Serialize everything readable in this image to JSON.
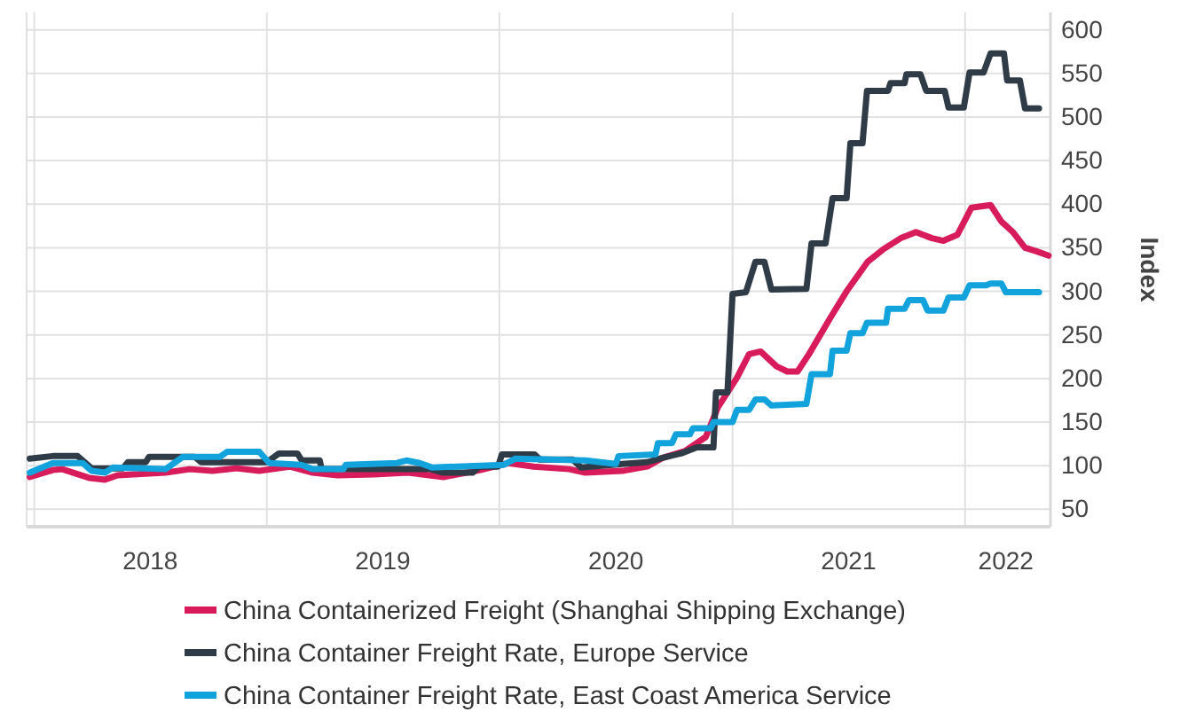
{
  "chart_data": {
    "type": "line",
    "ylabel": "Index",
    "xlim": [
      "2017-12-20",
      "2022-05-15"
    ],
    "ylim": [
      30,
      620
    ],
    "yticks": [
      50,
      100,
      150,
      200,
      250,
      300,
      350,
      400,
      450,
      500,
      550,
      600
    ],
    "xticks": [
      {
        "value": "2018-01-01",
        "label": null
      },
      {
        "value": "2018-07-02",
        "label": "2018"
      },
      {
        "value": "2019-01-01",
        "label": null
      },
      {
        "value": "2019-07-02",
        "label": "2019"
      },
      {
        "value": "2020-01-01",
        "label": null
      },
      {
        "value": "2020-07-02",
        "label": "2020"
      },
      {
        "value": "2021-01-01",
        "label": null
      },
      {
        "value": "2021-07-02",
        "label": "2021"
      },
      {
        "value": "2022-01-01",
        "label": null
      },
      {
        "value": "2022-03-06",
        "label": "2022"
      }
    ],
    "grid": true,
    "legend": "bottom",
    "line_style": "solid",
    "marker": "none",
    "series": [
      {
        "name": "China Containerized Freight (Shanghai Shipping Exchange)",
        "color": "#d81b5b",
        "x": [
          "2017-12-25",
          "2018-01-30",
          "2018-02-14",
          "2018-03-28",
          "2018-04-22",
          "2018-05-12",
          "2018-07-26",
          "2018-09-02",
          "2018-10-08",
          "2018-11-14",
          "2018-12-20",
          "2019-02-06",
          "2019-03-14",
          "2019-04-22",
          "2019-06-18",
          "2019-08-11",
          "2019-10-05",
          "2019-12-02",
          "2020-01-15",
          "2020-02-24",
          "2020-04-20",
          "2020-05-15",
          "2020-07-12",
          "2020-08-20",
          "2020-09-13",
          "2020-10-19",
          "2020-11-20",
          "2020-12-09",
          "2021-01-08",
          "2021-01-27",
          "2021-02-14",
          "2021-03-11",
          "2021-03-28",
          "2021-04-13",
          "2021-05-01",
          "2021-06-03",
          "2021-06-29",
          "2021-08-01",
          "2021-08-25",
          "2021-09-22",
          "2021-10-16",
          "2021-11-10",
          "2021-11-28",
          "2021-12-20",
          "2022-01-11",
          "2022-02-10",
          "2022-02-27",
          "2022-03-17",
          "2022-04-05",
          "2022-04-23",
          "2022-05-12"
        ],
        "values": [
          87,
          95,
          96,
          86,
          84,
          89,
          92,
          96,
          94,
          97,
          94,
          99,
          92,
          89,
          90,
          92,
          87,
          95,
          103,
          99,
          96,
          92,
          94,
          99,
          109,
          117,
          133,
          167,
          201,
          228,
          231,
          214,
          208,
          208,
          228,
          269,
          300,
          334,
          348,
          361,
          368,
          361,
          358,
          365,
          396,
          399,
          380,
          368,
          350,
          346,
          341
        ]
      },
      {
        "name": "China Container Freight Rate, Europe Service",
        "color": "#2f3b47",
        "x": [
          "2017-12-25",
          "2018-01-30",
          "2018-03-10",
          "2018-04-01",
          "2018-05-20",
          "2018-05-28",
          "2018-06-25",
          "2018-06-30",
          "2018-09-10",
          "2018-09-20",
          "2019-01-01",
          "2019-01-20",
          "2019-02-18",
          "2019-02-25",
          "2019-03-25",
          "2019-03-28",
          "2019-09-15",
          "2019-10-05",
          "2019-11-20",
          "2019-12-01",
          "2019-12-30",
          "2020-01-05",
          "2020-02-25",
          "2020-03-05",
          "2020-04-25",
          "2020-05-08",
          "2020-07-12",
          "2020-08-20",
          "2020-09-13",
          "2020-10-12",
          "2020-11-06",
          "2020-12-02",
          "2020-12-06",
          "2020-12-24",
          "2021-01-01",
          "2021-01-22",
          "2021-02-06",
          "2021-02-20",
          "2021-03-03",
          "2021-04-27",
          "2021-05-05",
          "2021-05-27",
          "2021-06-07",
          "2021-06-29",
          "2021-07-05",
          "2021-07-24",
          "2021-07-31",
          "2021-09-02",
          "2021-09-06",
          "2021-09-28",
          "2021-10-01",
          "2021-10-23",
          "2021-11-01",
          "2021-11-30",
          "2021-12-06",
          "2021-12-30",
          "2022-01-08",
          "2022-01-30",
          "2022-02-10",
          "2022-03-03",
          "2022-03-08",
          "2022-03-28",
          "2022-04-05",
          "2022-04-27"
        ],
        "values": [
          108,
          111,
          111,
          97,
          97,
          104,
          104,
          110,
          110,
          104,
          104,
          114,
          114,
          106,
          106,
          96,
          96,
          92,
          92,
          99,
          99,
          113,
          113,
          107,
          107,
          98,
          102,
          104,
          109,
          114,
          121,
          121,
          184,
          184,
          297,
          299,
          334,
          334,
          302,
          303,
          355,
          355,
          407,
          407,
          470,
          470,
          530,
          530,
          539,
          539,
          549,
          549,
          530,
          530,
          511,
          511,
          551,
          551,
          573,
          573,
          542,
          542,
          510,
          510
        ]
      },
      {
        "name": "China Container Freight Rate, East Coast America Service",
        "color": "#12a3dc",
        "x": [
          "2017-12-25",
          "2018-01-30",
          "2018-03-18",
          "2018-04-01",
          "2018-04-22",
          "2018-05-05",
          "2018-07-26",
          "2018-08-22",
          "2018-10-19",
          "2018-10-31",
          "2018-12-20",
          "2019-01-05",
          "2019-02-24",
          "2019-03-14",
          "2019-05-01",
          "2019-05-05",
          "2019-07-24",
          "2019-08-08",
          "2019-08-29",
          "2019-09-17",
          "2020-01-08",
          "2020-01-26",
          "2020-03-22",
          "2020-05-15",
          "2020-07-02",
          "2020-07-06",
          "2020-09-02",
          "2020-09-06",
          "2020-09-28",
          "2020-10-04",
          "2020-10-26",
          "2020-10-31",
          "2020-11-28",
          "2020-12-02",
          "2021-01-01",
          "2021-01-08",
          "2021-01-27",
          "2021-02-06",
          "2021-02-20",
          "2021-03-03",
          "2021-04-27",
          "2021-05-05",
          "2021-06-03",
          "2021-06-07",
          "2021-06-29",
          "2021-07-05",
          "2021-07-24",
          "2021-07-31",
          "2021-08-30",
          "2021-09-02",
          "2021-09-28",
          "2021-10-05",
          "2021-10-27",
          "2021-11-03",
          "2021-11-28",
          "2021-12-06",
          "2021-12-30",
          "2022-01-08",
          "2022-02-03",
          "2022-02-10",
          "2022-02-27",
          "2022-03-06",
          "2022-04-27"
        ],
        "values": [
          92,
          103,
          103,
          94,
          92,
          98,
          96,
          110,
          110,
          116,
          116,
          103,
          101,
          96,
          96,
          101,
          103,
          106,
          103,
          98,
          101,
          108,
          107,
          106,
          102,
          111,
          113,
          126,
          126,
          136,
          136,
          143,
          143,
          150,
          150,
          164,
          164,
          176,
          176,
          169,
          171,
          205,
          205,
          232,
          232,
          252,
          252,
          264,
          264,
          280,
          280,
          290,
          290,
          278,
          278,
          293,
          293,
          307,
          307,
          309,
          309,
          299,
          299
        ]
      }
    ]
  }
}
